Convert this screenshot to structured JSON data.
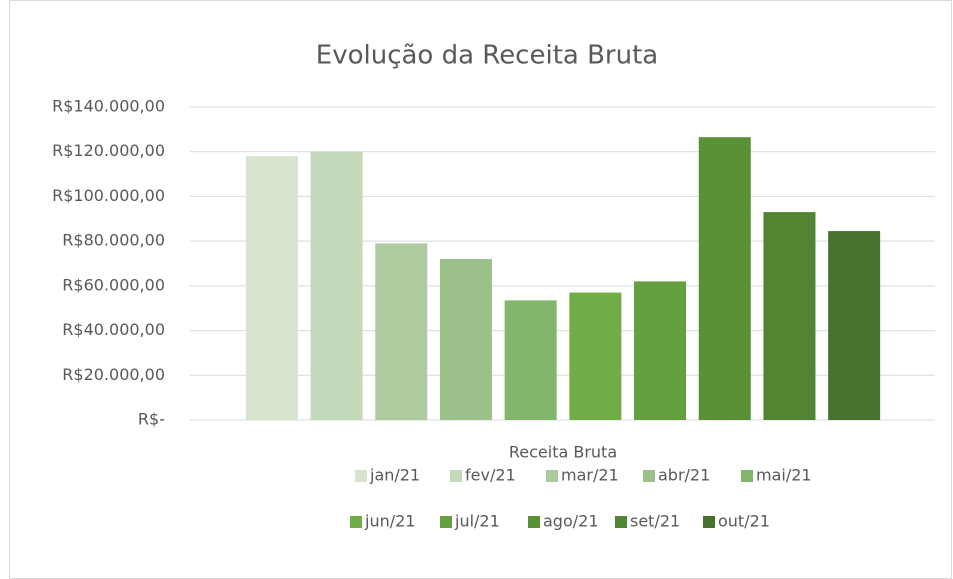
{
  "chart_data": {
    "type": "bar",
    "title": "Evolução da Receita Bruta",
    "categories": [
      "Receita Bruta"
    ],
    "series": [
      {
        "name": "jan/21",
        "color": "#d5e3cf",
        "values": [
          118000
        ]
      },
      {
        "name": "fev/21",
        "color": "#c3d9b9",
        "values": [
          120000
        ]
      },
      {
        "name": "mar/21",
        "color": "#aecb9f",
        "values": [
          79000
        ]
      },
      {
        "name": "abr/21",
        "color": "#9cc08a",
        "values": [
          72000
        ]
      },
      {
        "name": "mai/21",
        "color": "#82b66b",
        "values": [
          53500
        ]
      },
      {
        "name": "jun/21",
        "color": "#70ad47",
        "values": [
          57000
        ]
      },
      {
        "name": "jul/21",
        "color": "#64a03e",
        "values": [
          62000
        ]
      },
      {
        "name": "ago/21",
        "color": "#5a9137",
        "values": [
          126500
        ]
      },
      {
        "name": "set/21",
        "color": "#518532",
        "values": [
          93000
        ]
      },
      {
        "name": "out/21",
        "color": "#47712c",
        "values": [
          84500
        ]
      }
    ],
    "ylim": [
      0,
      140000
    ],
    "yticks": [
      {
        "value": 0,
        "label": "R$-"
      },
      {
        "value": 20000,
        "label": "R$20.000,00"
      },
      {
        "value": 40000,
        "label": "R$40.000,00"
      },
      {
        "value": 60000,
        "label": "R$60.000,00"
      },
      {
        "value": 80000,
        "label": "R$80.000,00"
      },
      {
        "value": 100000,
        "label": "R$100.000,00"
      },
      {
        "value": 120000,
        "label": "R$120.000,00"
      },
      {
        "value": 140000,
        "label": "R$140.000,00"
      }
    ],
    "grid": true,
    "legend": "bottom"
  }
}
